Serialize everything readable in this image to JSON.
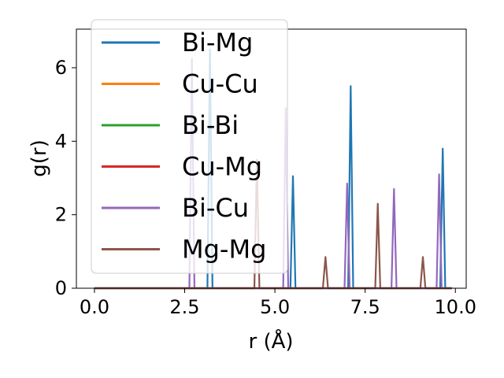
{
  "chart_data": {
    "type": "line",
    "xlabel": "r (Å)",
    "ylabel": "g(r)",
    "xlim": [
      -0.5,
      10.3
    ],
    "ylim": [
      0,
      7.05
    ],
    "xticks": [
      0.0,
      2.5,
      5.0,
      7.5,
      10.0
    ],
    "xtick_labels": [
      "0.0",
      "2.5",
      "5.0",
      "7.5",
      "10.0"
    ],
    "yticks": [
      0,
      2,
      4,
      6
    ],
    "ytick_labels": [
      "0",
      "2",
      "4",
      "6"
    ],
    "grid": false,
    "legend_position": "top-left",
    "peak_half_width": 0.07,
    "r_max": 9.9,
    "series": [
      {
        "name": "Bi-Mg",
        "color": "#1f77b4",
        "peaks": [
          [
            3.2,
            6.5
          ],
          [
            5.5,
            3.05
          ],
          [
            7.1,
            5.5
          ],
          [
            9.65,
            3.8
          ]
        ]
      },
      {
        "name": "Cu-Cu",
        "color": "#ff7f0e",
        "peaks": []
      },
      {
        "name": "Bi-Bi",
        "color": "#2ca02c",
        "peaks": []
      },
      {
        "name": "Cu-Mg",
        "color": "#d62728",
        "peaks": []
      },
      {
        "name": "Bi-Cu",
        "color": "#9467bd",
        "peaks": [
          [
            2.7,
            6.25
          ],
          [
            5.3,
            4.9
          ],
          [
            7.0,
            2.85
          ],
          [
            8.3,
            2.7
          ],
          [
            9.55,
            3.1
          ]
        ]
      },
      {
        "name": "Mg-Mg",
        "color": "#8c564b",
        "peaks": [
          [
            4.5,
            3.5
          ],
          [
            6.4,
            0.85
          ],
          [
            7.85,
            2.3
          ],
          [
            9.1,
            0.85
          ]
        ]
      }
    ]
  }
}
